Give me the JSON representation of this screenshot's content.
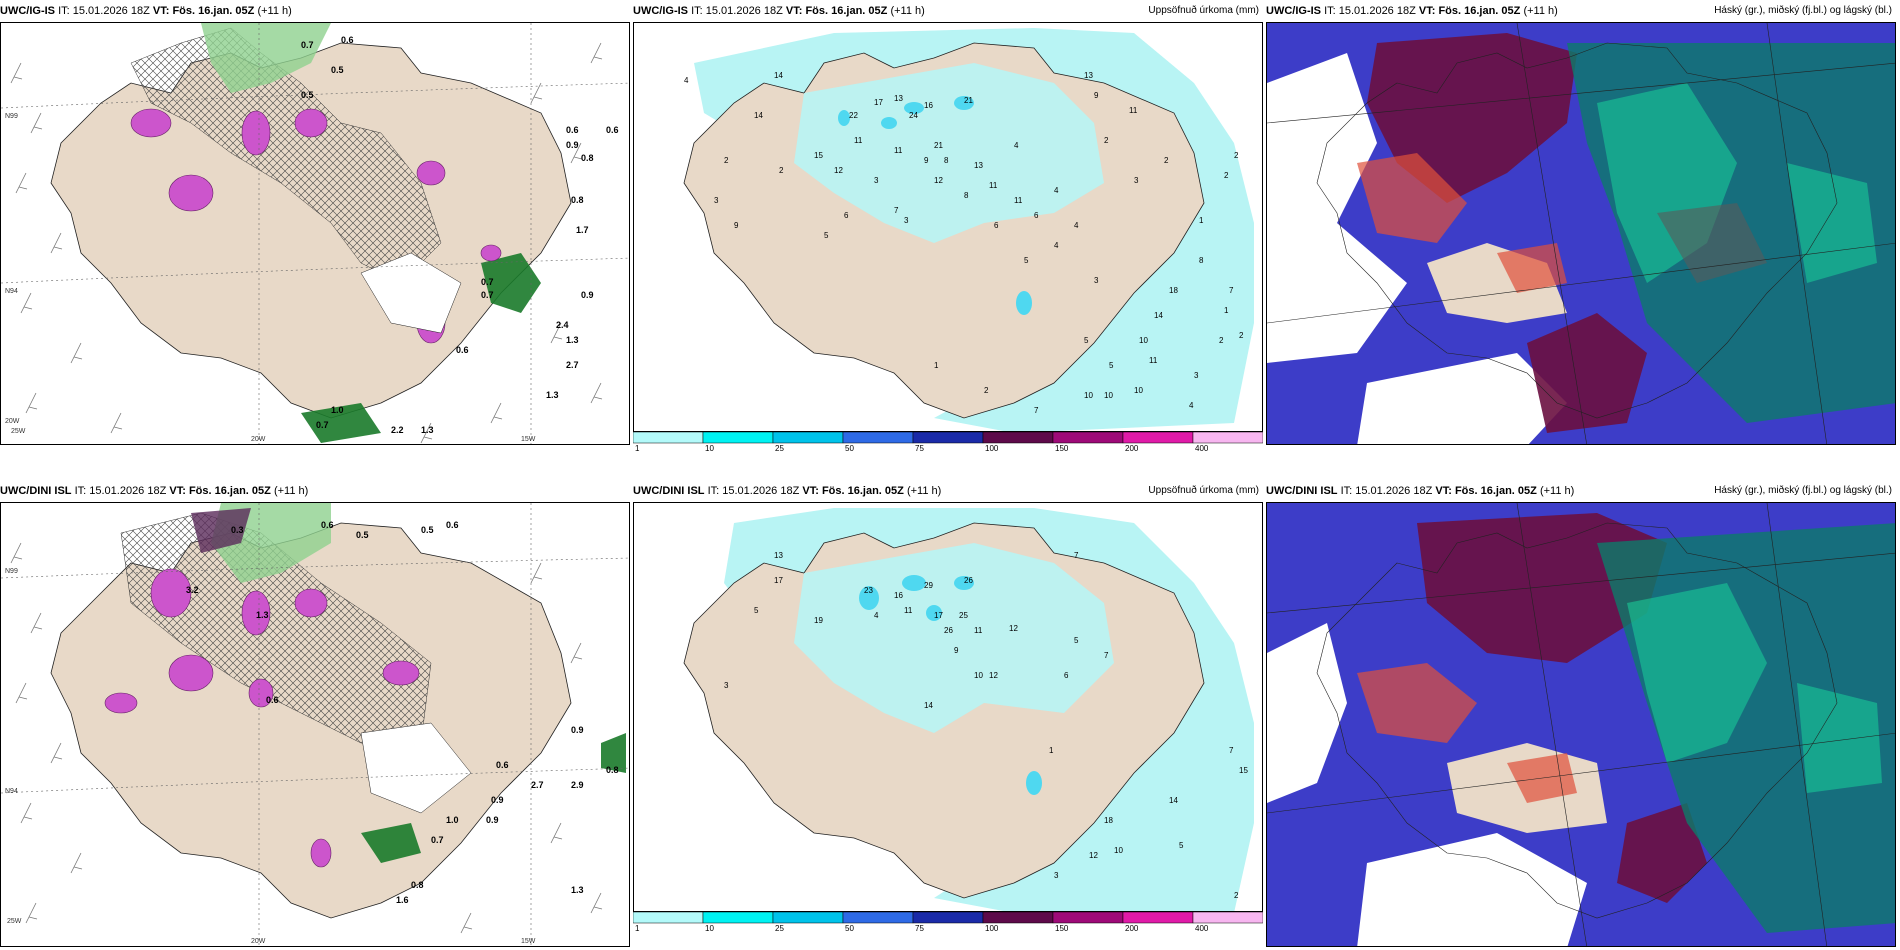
{
  "panels": [
    {
      "id": "top-left",
      "model": "UWC/IG-IS",
      "it_label": "IT:",
      "it": "15.01.2026 18Z",
      "vt_label": "VT:",
      "vt": "Fös. 16.jan. 05Z",
      "lead": "(+11 h)",
      "right_title": "",
      "coords": [
        "N99",
        "N94",
        "N89",
        "25W",
        "20W",
        "15W"
      ],
      "values": [
        "0.7",
        "0.6",
        "0.5",
        "0.5",
        "0.6",
        "0.9",
        "0.8",
        "0.6",
        "0.8",
        "1.7",
        "0.7",
        "0.7",
        "0.9",
        "2.4",
        "1.3",
        "2.7",
        "0.6",
        "0.7",
        "1.0",
        "2.2",
        "1.3",
        "1.3"
      ]
    },
    {
      "id": "top-middle",
      "model": "UWC/IG-IS",
      "it_label": "IT:",
      "it": "15.01.2026 18Z",
      "vt_label": "VT:",
      "vt": "Fös. 16.jan. 05Z",
      "lead": "(+11 h)",
      "right_title": "Uppsöfnuð úrkoma (mm)",
      "values": [
        "4",
        "14",
        "14",
        "2",
        "22",
        "17",
        "13",
        "24",
        "21",
        "16",
        "11",
        "15",
        "12",
        "3",
        "11",
        "9",
        "21",
        "8",
        "12",
        "13",
        "4",
        "11",
        "6",
        "5",
        "7",
        "13",
        "11",
        "9",
        "8",
        "3",
        "4",
        "2",
        "4",
        "3",
        "6",
        "6",
        "9",
        "3",
        "2",
        "2",
        "11",
        "4",
        "5",
        "3",
        "1",
        "2",
        "2",
        "7",
        "8",
        "1",
        "18",
        "14",
        "10",
        "11",
        "5",
        "5",
        "10",
        "3",
        "2",
        "2",
        "10",
        "10",
        "7",
        "4",
        "2",
        "1"
      ]
    },
    {
      "id": "top-right",
      "model": "UWC/IG-IS",
      "it_label": "IT:",
      "it": "15.01.2026 18Z",
      "vt_label": "VT:",
      "vt": "Fös. 16.jan. 05Z",
      "lead": "(+11 h)",
      "right_title": "Háský (gr.), miðský (fj.bl.) og lágský (bl.)"
    },
    {
      "id": "bottom-left",
      "model": "UWC/DINI ISL",
      "it_label": "IT:",
      "it": "15.01.2026 18Z",
      "vt_label": "VT:",
      "vt": "Fös. 16.jan. 05Z",
      "lead": "(+11 h)",
      "right_title": "",
      "coords": [
        "N99",
        "N94",
        "25W",
        "20W",
        "15W"
      ],
      "values": [
        "0.3",
        "0.6",
        "0.5",
        "0.5",
        "0.6",
        "3.2",
        "1.3",
        "0.6",
        "0.9",
        "0.8",
        "0.6",
        "0.9",
        "2.7",
        "2.9",
        "0.9",
        "0.7",
        "1.0",
        "0.8",
        "1.6",
        "1.3"
      ]
    },
    {
      "id": "bottom-middle",
      "model": "UWC/DINI ISL",
      "it_label": "IT:",
      "it": "15.01.2026 18Z",
      "vt_label": "VT:",
      "vt": "Fös. 16.jan. 05Z",
      "lead": "(+11 h)",
      "right_title": "Uppsöfnuð úrkoma (mm)",
      "values": [
        "13",
        "17",
        "23",
        "16",
        "29",
        "26",
        "11",
        "19",
        "17",
        "26",
        "25",
        "11",
        "12",
        "9",
        "7",
        "10",
        "12",
        "14",
        "6",
        "7",
        "5",
        "1",
        "5",
        "3",
        "4",
        "18",
        "14",
        "10",
        "12",
        "3",
        "7",
        "15",
        "5",
        "2"
      ]
    },
    {
      "id": "bottom-right",
      "model": "UWC/DINI ISL",
      "it_label": "IT:",
      "it": "15.01.2026 18Z",
      "vt_label": "VT:",
      "vt": "Fös. 16.jan. 05Z",
      "lead": "(+11 h)",
      "right_title": "Háský (gr.), miðský (fj.bl.) og lágský (bl.)"
    }
  ],
  "legend": {
    "labels": [
      "1",
      "10",
      "25",
      "50",
      "75",
      "100",
      "150",
      "200",
      "400"
    ],
    "colors": [
      "#b3fafa",
      "#00f2f2",
      "#00c3ea",
      "#2e6ae6",
      "#1a2aa8",
      "#5e0a4a",
      "#9e0a78",
      "#e01aa8",
      "#f7b6f0"
    ]
  },
  "colors": {
    "land": "#e8d9c8",
    "precip_cyan": "#b8f4f4",
    "sea": "#ffffff",
    "cloud_high": "#7a7a7a",
    "cloud_mid": "#0e7a5e",
    "cloud_low": "#3a3acc"
  }
}
